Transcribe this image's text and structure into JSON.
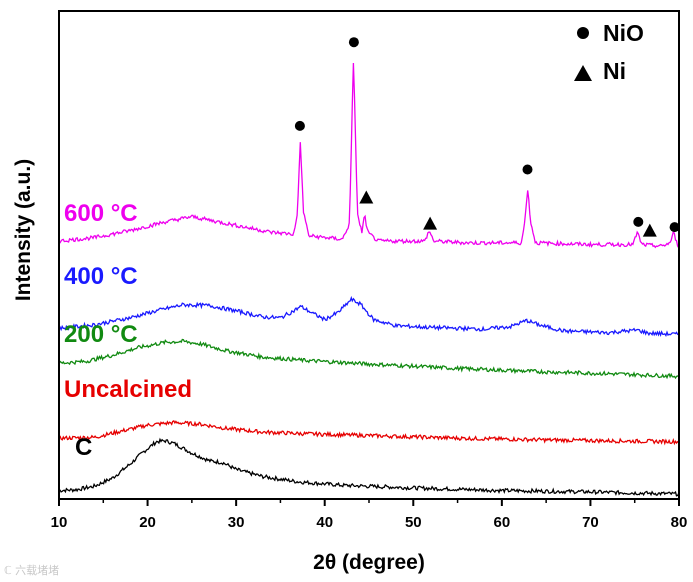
{
  "chart_data": {
    "type": "line",
    "title": "",
    "xlabel": "2θ (degree)",
    "ylabel": "Intensity (a.u.)",
    "xlim": [
      10,
      80
    ],
    "xticks": [
      "10",
      "20",
      "30",
      "40",
      "50",
      "60",
      "70",
      "80"
    ],
    "yticks_shown": false,
    "legend_position": "top-right",
    "legend": [
      {
        "marker": "circle",
        "label": "NiO"
      },
      {
        "marker": "triangle",
        "label": "Ni"
      }
    ],
    "series": [
      {
        "name": "C",
        "color": "#000000",
        "points": [
          [
            10,
            0.02
          ],
          [
            12,
            0.025
          ],
          [
            14,
            0.045
          ],
          [
            16,
            0.09
          ],
          [
            18,
            0.17
          ],
          [
            19.5,
            0.24
          ],
          [
            21,
            0.3
          ],
          [
            22,
            0.305
          ],
          [
            23,
            0.29
          ],
          [
            25,
            0.235
          ],
          [
            27,
            0.19
          ],
          [
            28.5,
            0.18
          ],
          [
            30,
            0.14
          ],
          [
            33,
            0.1
          ],
          [
            37,
            0.07
          ],
          [
            42,
            0.05
          ],
          [
            50,
            0.035
          ],
          [
            60,
            0.02
          ],
          [
            70,
            0.012
          ],
          [
            80,
            0.0
          ]
        ]
      },
      {
        "name": "Uncalcined",
        "color": "#e60000",
        "points": [
          [
            10,
            0.32
          ],
          [
            14,
            0.325
          ],
          [
            17,
            0.36
          ],
          [
            20,
            0.395
          ],
          [
            23,
            0.41
          ],
          [
            26,
            0.4
          ],
          [
            29,
            0.375
          ],
          [
            33,
            0.355
          ],
          [
            38,
            0.345
          ],
          [
            45,
            0.335
          ],
          [
            55,
            0.32
          ],
          [
            65,
            0.31
          ],
          [
            72,
            0.305
          ],
          [
            80,
            0.3
          ]
        ]
      },
      {
        "name": "200 °C",
        "color": "#118a11",
        "points": [
          [
            10,
            0.75
          ],
          [
            13,
            0.76
          ],
          [
            16,
            0.795
          ],
          [
            19,
            0.84
          ],
          [
            22,
            0.87
          ],
          [
            24,
            0.875
          ],
          [
            26,
            0.86
          ],
          [
            29,
            0.82
          ],
          [
            33,
            0.785
          ],
          [
            38,
            0.765
          ],
          [
            45,
            0.745
          ],
          [
            55,
            0.72
          ],
          [
            65,
            0.7
          ],
          [
            72,
            0.69
          ],
          [
            80,
            0.675
          ]
        ]
      },
      {
        "name": "400 °C",
        "color": "#1a1aff",
        "points": [
          [
            10,
            0.95
          ],
          [
            14,
            0.97
          ],
          [
            18,
            1.01
          ],
          [
            21,
            1.05
          ],
          [
            24,
            1.085
          ],
          [
            27,
            1.08
          ],
          [
            30,
            1.05
          ],
          [
            33,
            1.015
          ],
          [
            35,
            1.01
          ],
          [
            36.5,
            1.05
          ],
          [
            37.3,
            1.075
          ],
          [
            38.5,
            1.04
          ],
          [
            40,
            1.0
          ],
          [
            41.5,
            1.04
          ],
          [
            43,
            1.115
          ],
          [
            44,
            1.09
          ],
          [
            45.5,
            1.0
          ],
          [
            48,
            0.965
          ],
          [
            52,
            0.955
          ],
          [
            58,
            0.945
          ],
          [
            61,
            0.96
          ],
          [
            62.8,
            0.995
          ],
          [
            64.5,
            0.965
          ],
          [
            67,
            0.935
          ],
          [
            72,
            0.925
          ],
          [
            75.3,
            0.94
          ],
          [
            76.5,
            0.922
          ],
          [
            80,
            0.915
          ]
        ]
      },
      {
        "name": "600 °C",
        "color": "#ee00ee",
        "points": [
          [
            10,
            1.45
          ],
          [
            14,
            1.47
          ],
          [
            18,
            1.51
          ],
          [
            22,
            1.56
          ],
          [
            25,
            1.59
          ],
          [
            28,
            1.56
          ],
          [
            31,
            1.53
          ],
          [
            34,
            1.5
          ],
          [
            36.5,
            1.49
          ],
          [
            36.9,
            1.6
          ],
          [
            37.25,
            2.02
          ],
          [
            37.6,
            1.62
          ],
          [
            38.2,
            1.48
          ],
          [
            42,
            1.46
          ],
          [
            42.8,
            1.55
          ],
          [
            43.25,
            2.5
          ],
          [
            43.7,
            1.6
          ],
          [
            44.2,
            1.5
          ],
          [
            44.5,
            1.6
          ],
          [
            44.85,
            1.5
          ],
          [
            46,
            1.45
          ],
          [
            51.3,
            1.45
          ],
          [
            51.8,
            1.51
          ],
          [
            52.3,
            1.45
          ],
          [
            56,
            1.44
          ],
          [
            62.2,
            1.44
          ],
          [
            62.6,
            1.56
          ],
          [
            62.9,
            1.76
          ],
          [
            63.25,
            1.56
          ],
          [
            63.8,
            1.44
          ],
          [
            70,
            1.43
          ],
          [
            74.8,
            1.43
          ],
          [
            75.3,
            1.5
          ],
          [
            75.8,
            1.43
          ],
          [
            78,
            1.42
          ],
          [
            79,
            1.44
          ],
          [
            79.4,
            1.5
          ],
          [
            79.8,
            1.43
          ],
          [
            80,
            1.42
          ]
        ]
      }
    ],
    "peak_markers": [
      {
        "phase": "NiO",
        "x": 37.2,
        "y": 2.11
      },
      {
        "phase": "NiO",
        "x": 43.3,
        "y": 2.59
      },
      {
        "phase": "Ni",
        "x": 44.7,
        "y": 1.7
      },
      {
        "phase": "Ni",
        "x": 51.9,
        "y": 1.55
      },
      {
        "phase": "NiO",
        "x": 62.9,
        "y": 1.86
      },
      {
        "phase": "NiO",
        "x": 75.4,
        "y": 1.56
      },
      {
        "phase": "Ni",
        "x": 76.7,
        "y": 1.51
      },
      {
        "phase": "NiO",
        "x": 79.5,
        "y": 1.53
      }
    ],
    "series_labels": [
      {
        "text": "600 °C",
        "color": "#ee00ee"
      },
      {
        "text": "400 °C",
        "color": "#1a1aff"
      },
      {
        "text": "200 °C",
        "color": "#118a11"
      },
      {
        "text": "Uncalcined",
        "color": "#e60000"
      },
      {
        "text": "C",
        "color": "#000000"
      }
    ]
  },
  "watermark": "ℂ 六载堵堵"
}
